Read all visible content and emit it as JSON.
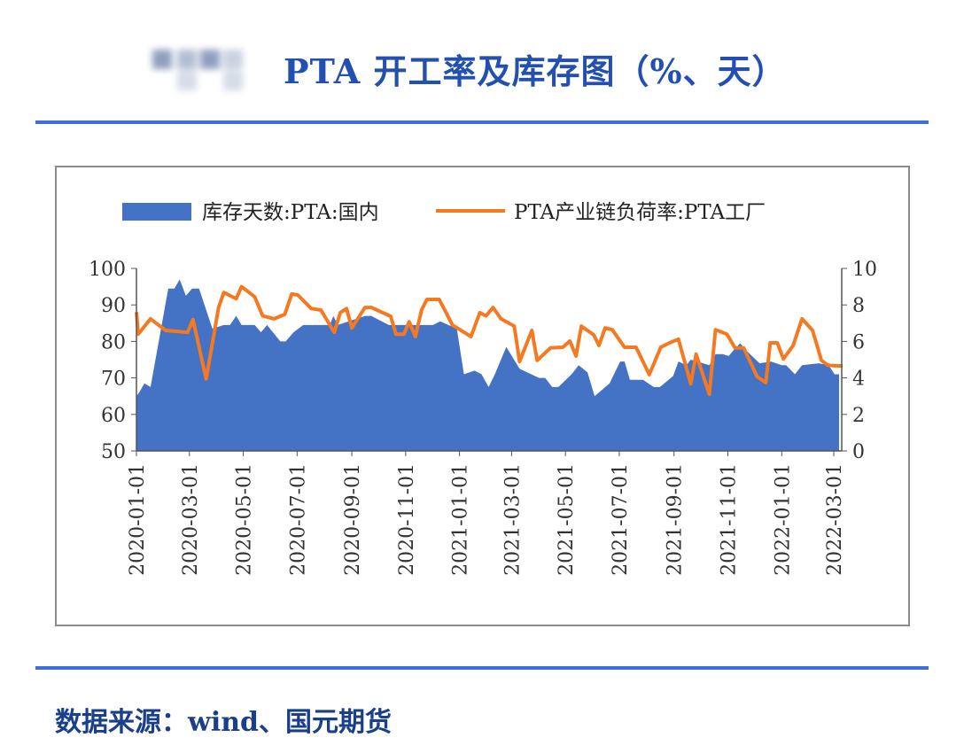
{
  "header": {
    "title": "PTA 开工率及库存图（%、天）"
  },
  "footer": {
    "source": "数据来源：wind、国元期货"
  },
  "colors": {
    "area": "#4472c4",
    "line": "#f47920",
    "accent": "#3c6fdc",
    "title": "#2350b0"
  },
  "chart_data": {
    "type": "line",
    "title": "",
    "legend_position": "top",
    "grid": false,
    "xlim": [
      "2020-01-01",
      "2022-03-10"
    ],
    "x_ticks": [
      "2020-01-01",
      "2020-03-01",
      "2020-05-01",
      "2020-07-01",
      "2020-09-01",
      "2020-11-01",
      "2021-01-01",
      "2021-03-01",
      "2021-05-01",
      "2021-07-01",
      "2021-09-01",
      "2021-11-01",
      "2022-01-01",
      "2022-03-01"
    ],
    "y_left": {
      "lim": [
        50,
        100
      ],
      "ticks": [
        50,
        60,
        70,
        80,
        90,
        100
      ]
    },
    "y_right": {
      "lim": [
        0,
        10
      ],
      "ticks": [
        0,
        2,
        4,
        6,
        8,
        10
      ]
    },
    "series": [
      {
        "name": "库存天数:PTA:国内",
        "type": "area",
        "axis": "right",
        "points": [
          [
            "2020-01-01",
            3.0
          ],
          [
            "2020-01-04",
            3.2
          ],
          [
            "2020-01-10",
            3.7
          ],
          [
            "2020-01-17",
            3.5
          ],
          [
            "2020-02-06",
            8.9
          ],
          [
            "2020-02-13",
            8.9
          ],
          [
            "2020-02-19",
            9.4
          ],
          [
            "2020-02-26",
            8.5
          ],
          [
            "2020-03-04",
            8.9
          ],
          [
            "2020-03-12",
            8.9
          ],
          [
            "2020-03-27",
            6.7
          ],
          [
            "2020-04-09",
            6.9
          ],
          [
            "2020-04-16",
            6.9
          ],
          [
            "2020-04-23",
            7.4
          ],
          [
            "2020-04-29",
            6.9
          ],
          [
            "2020-05-14",
            6.9
          ],
          [
            "2020-05-21",
            6.5
          ],
          [
            "2020-05-28",
            6.9
          ],
          [
            "2020-06-12",
            6.0
          ],
          [
            "2020-06-18",
            6.0
          ],
          [
            "2020-06-27",
            6.5
          ],
          [
            "2020-07-08",
            6.9
          ],
          [
            "2020-08-07",
            6.9
          ],
          [
            "2020-08-11",
            7.4
          ],
          [
            "2020-08-16",
            6.9
          ],
          [
            "2020-09-16",
            7.4
          ],
          [
            "2020-09-23",
            7.4
          ],
          [
            "2020-10-13",
            6.9
          ],
          [
            "2020-12-02",
            6.9
          ],
          [
            "2020-12-10",
            7.1
          ],
          [
            "2020-12-29",
            6.7
          ],
          [
            "2021-01-06",
            4.2
          ],
          [
            "2021-01-18",
            4.4
          ],
          [
            "2021-01-26",
            4.2
          ],
          [
            "2021-02-03",
            3.5
          ],
          [
            "2021-02-10",
            4.2
          ],
          [
            "2021-02-23",
            5.7
          ],
          [
            "2021-03-10",
            4.5
          ],
          [
            "2021-04-01",
            4.0
          ],
          [
            "2021-04-08",
            4.0
          ],
          [
            "2021-04-16",
            3.5
          ],
          [
            "2021-04-23",
            3.5
          ],
          [
            "2021-05-08",
            4.2
          ],
          [
            "2021-05-16",
            4.7
          ],
          [
            "2021-05-26",
            4.3
          ],
          [
            "2021-06-03",
            3.0
          ],
          [
            "2021-06-20",
            3.7
          ],
          [
            "2021-07-02",
            4.9
          ],
          [
            "2021-07-07",
            4.9
          ],
          [
            "2021-07-13",
            3.9
          ],
          [
            "2021-07-28",
            3.9
          ],
          [
            "2021-08-09",
            3.5
          ],
          [
            "2021-08-16",
            3.5
          ],
          [
            "2021-08-31",
            4.1
          ],
          [
            "2021-09-06",
            4.9
          ],
          [
            "2021-09-15",
            4.7
          ],
          [
            "2021-09-20",
            5.0
          ],
          [
            "2021-10-11",
            4.7
          ],
          [
            "2021-10-18",
            5.3
          ],
          [
            "2021-10-26",
            5.3
          ],
          [
            "2021-11-02",
            5.2
          ],
          [
            "2021-11-07",
            5.5
          ],
          [
            "2021-11-15",
            5.9
          ],
          [
            "2021-11-22",
            5.5
          ],
          [
            "2021-12-07",
            4.8
          ],
          [
            "2021-12-20",
            4.9
          ],
          [
            "2022-01-01",
            4.7
          ],
          [
            "2022-01-06",
            4.7
          ],
          [
            "2022-01-16",
            4.2
          ],
          [
            "2022-01-24",
            4.7
          ],
          [
            "2022-02-12",
            4.8
          ],
          [
            "2022-02-23",
            4.7
          ],
          [
            "2022-03-02",
            4.2
          ],
          [
            "2022-03-07",
            4.2
          ]
        ]
      },
      {
        "name": "PTA产业链负荷率:PTA工厂",
        "type": "line",
        "axis": "left",
        "points": [
          [
            "2020-01-01",
            88
          ],
          [
            "2020-01-03",
            82
          ],
          [
            "2020-01-17",
            86.2
          ],
          [
            "2020-02-03",
            83
          ],
          [
            "2020-02-28",
            82.5
          ],
          [
            "2020-03-05",
            86
          ],
          [
            "2020-03-20",
            69.7
          ],
          [
            "2020-04-03",
            89.3
          ],
          [
            "2020-04-09",
            93.4
          ],
          [
            "2020-04-23",
            91.7
          ],
          [
            "2020-04-29",
            95
          ],
          [
            "2020-05-14",
            92.2
          ],
          [
            "2020-05-23",
            87
          ],
          [
            "2020-06-05",
            86.2
          ],
          [
            "2020-06-17",
            87.4
          ],
          [
            "2020-06-25",
            93
          ],
          [
            "2020-07-02",
            92.7
          ],
          [
            "2020-07-17",
            89
          ],
          [
            "2020-07-28",
            88.6
          ],
          [
            "2020-08-12",
            82.5
          ],
          [
            "2020-08-19",
            87.9
          ],
          [
            "2020-08-26",
            89
          ],
          [
            "2020-09-01",
            83.7
          ],
          [
            "2020-09-16",
            89.3
          ],
          [
            "2020-09-23",
            89.3
          ],
          [
            "2020-10-15",
            86.9
          ],
          [
            "2020-10-21",
            82
          ],
          [
            "2020-10-30",
            82
          ],
          [
            "2020-11-05",
            85.4
          ],
          [
            "2020-11-12",
            81.3
          ],
          [
            "2020-11-19",
            88.6
          ],
          [
            "2020-11-25",
            91.5
          ],
          [
            "2020-12-09",
            91.5
          ],
          [
            "2020-12-24",
            84.5
          ],
          [
            "2021-01-14",
            81.3
          ],
          [
            "2021-01-24",
            87.9
          ],
          [
            "2021-01-31",
            87
          ],
          [
            "2021-02-08",
            89.3
          ],
          [
            "2021-02-17",
            86.2
          ],
          [
            "2021-03-04",
            84.2
          ],
          [
            "2021-03-10",
            74.5
          ],
          [
            "2021-03-24",
            83
          ],
          [
            "2021-03-30",
            74.8
          ],
          [
            "2021-04-14",
            78.2
          ],
          [
            "2021-04-28",
            78.4
          ],
          [
            "2021-05-06",
            80.1
          ],
          [
            "2021-05-13",
            76
          ],
          [
            "2021-05-19",
            84.2
          ],
          [
            "2021-06-02",
            81.8
          ],
          [
            "2021-06-08",
            78.9
          ],
          [
            "2021-06-15",
            83.7
          ],
          [
            "2021-06-23",
            83.2
          ],
          [
            "2021-07-07",
            78.4
          ],
          [
            "2021-07-20",
            78.4
          ],
          [
            "2021-08-04",
            70.9
          ],
          [
            "2021-08-17",
            78.4
          ],
          [
            "2021-08-27",
            79.6
          ],
          [
            "2021-09-06",
            80.6
          ],
          [
            "2021-09-20",
            68.4
          ],
          [
            "2021-09-26",
            76.5
          ],
          [
            "2021-10-11",
            65.5
          ],
          [
            "2021-10-18",
            83.2
          ],
          [
            "2021-10-31",
            82
          ],
          [
            "2021-11-09",
            78.2
          ],
          [
            "2021-11-19",
            78.2
          ],
          [
            "2021-12-04",
            70.4
          ],
          [
            "2021-12-14",
            68.7
          ],
          [
            "2021-12-19",
            79.6
          ],
          [
            "2021-12-27",
            79.6
          ],
          [
            "2022-01-03",
            75.2
          ],
          [
            "2022-01-14",
            78.9
          ],
          [
            "2022-01-24",
            86.2
          ],
          [
            "2022-02-05",
            83
          ],
          [
            "2022-02-15",
            74.8
          ],
          [
            "2022-02-22",
            73.5
          ],
          [
            "2022-03-05",
            73.3
          ],
          [
            "2022-03-11",
            73.3
          ]
        ]
      }
    ]
  }
}
